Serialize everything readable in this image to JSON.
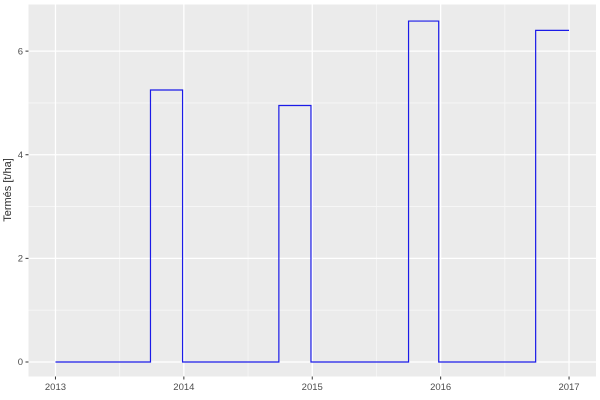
{
  "chart_data": {
    "type": "line",
    "subtype": "step",
    "title": "",
    "xlabel": "",
    "ylabel": "Termés [t/ha]",
    "legend_position": "none",
    "grid": "major-and-minor",
    "panel_bg": "#ebebeb",
    "x_axis": {
      "range": [
        2012.79,
        2017.21
      ],
      "ticks": [
        {
          "value": 2013,
          "label": "2013"
        },
        {
          "value": 2014,
          "label": "2014"
        },
        {
          "value": 2015,
          "label": "2015"
        },
        {
          "value": 2016,
          "label": "2016"
        },
        {
          "value": 2017,
          "label": "2017"
        }
      ],
      "minor": [
        2013.5,
        2014.5,
        2015.5,
        2016.5
      ]
    },
    "y_axis": {
      "title": "Termés [t/ha]",
      "range": [
        -0.28,
        6.9
      ],
      "ticks": [
        {
          "value": 0,
          "label": "0"
        },
        {
          "value": 2,
          "label": "2"
        },
        {
          "value": 4,
          "label": "4"
        },
        {
          "value": 6,
          "label": "6"
        }
      ],
      "minor": [
        1,
        3,
        5
      ]
    },
    "series": [
      {
        "name": "Termés",
        "color": "#1b1be8",
        "baseline": 0,
        "x_start": 2013.0,
        "x_end": 2017.0,
        "pulses": [
          {
            "start": 2013.74,
            "end": 2013.99,
            "value": 5.25
          },
          {
            "start": 2014.74,
            "end": 2014.99,
            "value": 4.95
          },
          {
            "start": 2015.75,
            "end": 2015.985,
            "value": 6.58
          },
          {
            "start": 2016.74,
            "end": 2017.0,
            "value": 6.4
          }
        ],
        "points": [
          [
            2013.0,
            0
          ],
          [
            2013.74,
            0
          ],
          [
            2013.74,
            5.25
          ],
          [
            2013.99,
            5.25
          ],
          [
            2013.99,
            0
          ],
          [
            2014.74,
            0
          ],
          [
            2014.74,
            4.95
          ],
          [
            2014.99,
            4.95
          ],
          [
            2014.99,
            0
          ],
          [
            2015.75,
            0
          ],
          [
            2015.75,
            6.58
          ],
          [
            2015.985,
            6.58
          ],
          [
            2015.985,
            0
          ],
          [
            2016.74,
            0
          ],
          [
            2016.74,
            6.4
          ],
          [
            2017.0,
            6.4
          ]
        ]
      }
    ]
  },
  "colors": {
    "line": "#1b1be8",
    "panel_bg": "#ebebeb",
    "grid_major": "#ffffff",
    "grid_minor": "#f7f7f7",
    "tick_label": "#4d4d4d",
    "axis_title": "#2b2b2b",
    "tick_mark": "#333333",
    "background": "#ffffff"
  }
}
